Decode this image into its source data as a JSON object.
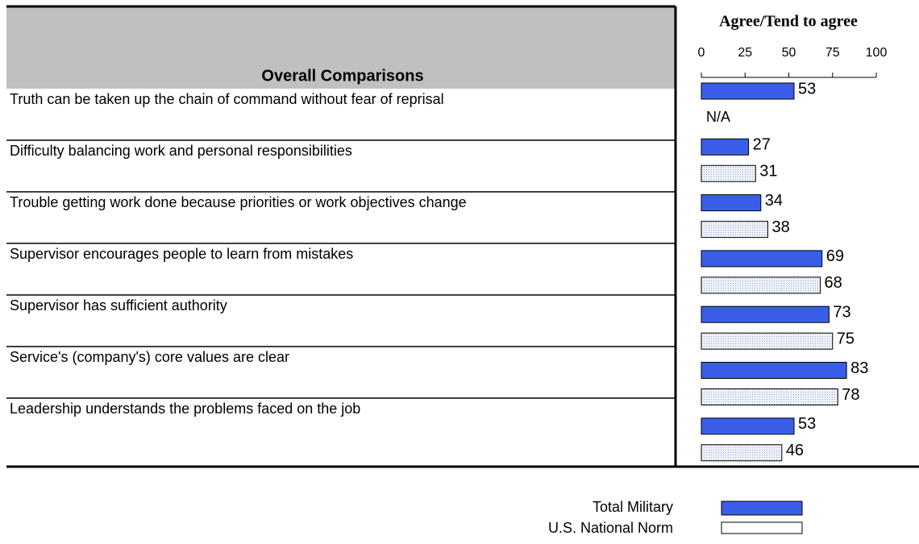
{
  "chart_data": {
    "type": "bar",
    "orientation": "horizontal",
    "title": "Overall Comparisons",
    "axis_title": "Agree/Tend to agree",
    "categories": [
      "Truth can be taken up the chain of command without fear of reprisal",
      "Difficulty balancing work and personal responsibilities",
      "Trouble getting work done because priorities or work objectives change",
      "Supervisor encourages people to learn from mistakes",
      "Supervisor has sufficient authority",
      "Service's (company's) core values are clear",
      "Leadership understands the problems faced on the job"
    ],
    "series": [
      {
        "name": "Total Military",
        "color": "#3b5ee8",
        "values": [
          53,
          27,
          34,
          69,
          73,
          83,
          53
        ]
      },
      {
        "name": "U.S. National Norm",
        "color": "#e6ecf6",
        "values": [
          null,
          31,
          38,
          68,
          75,
          78,
          46
        ],
        "value_labels": [
          "N/A",
          "31",
          "38",
          "68",
          "75",
          "78",
          "46"
        ]
      }
    ],
    "xlim": [
      0,
      100
    ],
    "xticks": [
      0,
      25,
      50,
      75,
      100
    ]
  }
}
